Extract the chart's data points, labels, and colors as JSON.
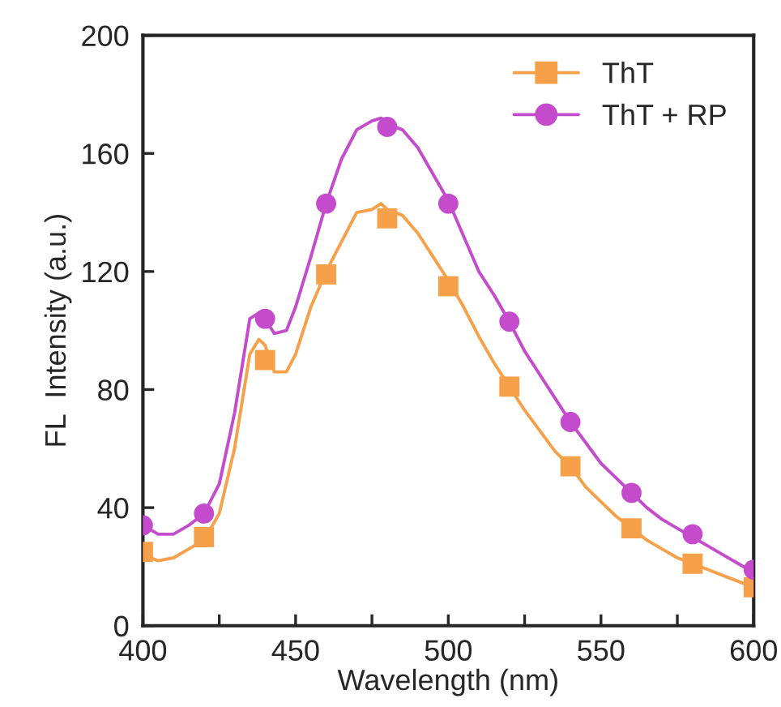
{
  "chart_data": {
    "type": "line",
    "xlabel": "Wavelength (nm)",
    "ylabel": "FL  Intensity (a.u.)",
    "xlim": [
      400,
      600
    ],
    "ylim": [
      0,
      200
    ],
    "xticks": [
      400,
      {
        "value": 425,
        "label": null
      },
      450,
      {
        "value": 475,
        "label": null
      },
      500,
      {
        "value": 525,
        "label": null
      },
      550,
      {
        "value": 575,
        "label": null
      },
      600
    ],
    "yticks": [
      0,
      40,
      80,
      120,
      160,
      200
    ],
    "grid": false,
    "legend": "top right",
    "line_style": "solid",
    "series": [
      {
        "marker": "none",
        "color": "#f7a04a",
        "x": [
          400,
          405,
          410,
          415,
          420,
          425,
          430,
          435,
          438,
          440,
          443,
          447,
          450,
          455,
          460,
          465,
          470,
          475,
          478,
          480,
          485,
          490,
          495,
          500,
          505,
          510,
          515,
          520,
          525,
          530,
          535,
          540,
          545,
          550,
          555,
          560,
          565,
          570,
          575,
          580,
          585,
          590,
          595,
          600
        ],
        "values": [
          24,
          22,
          23,
          26,
          29,
          38,
          60,
          92,
          97,
          95,
          86,
          86,
          92,
          108,
          120,
          130,
          140,
          141,
          143,
          141,
          139,
          133,
          125,
          117,
          108,
          98,
          89,
          81,
          73,
          66,
          59,
          54,
          47,
          42,
          37,
          33,
          29,
          26,
          23,
          21,
          19,
          17,
          15,
          13
        ]
      },
      {
        "marker": "none",
        "color": "#c44ccc",
        "x": [
          400,
          405,
          410,
          415,
          420,
          425,
          430,
          435,
          438,
          440,
          443,
          447,
          450,
          455,
          460,
          465,
          470,
          475,
          478,
          480,
          485,
          490,
          495,
          500,
          505,
          510,
          515,
          520,
          525,
          530,
          535,
          540,
          545,
          550,
          555,
          560,
          565,
          570,
          575,
          580,
          585,
          590,
          595,
          600
        ],
        "values": [
          34,
          31,
          31,
          34,
          38,
          48,
          72,
          104,
          106,
          104,
          99,
          100,
          108,
          125,
          143,
          158,
          168,
          171,
          172,
          170,
          168,
          162,
          153,
          144,
          132,
          120,
          112,
          103,
          93,
          85,
          77,
          69,
          62,
          55,
          50,
          45,
          40,
          36,
          33,
          30,
          27,
          24,
          21,
          18
        ]
      },
      {
        "type": "scatter",
        "name": "ThT",
        "marker": "square",
        "color": "#f7a04a",
        "x": [
          400,
          420,
          440,
          460,
          480,
          500,
          520,
          540,
          560,
          580,
          600
        ],
        "values": [
          25,
          30,
          90,
          119,
          138,
          115,
          81,
          54,
          33,
          21,
          13
        ]
      },
      {
        "type": "scatter",
        "name": "ThT + RP",
        "marker": "circle",
        "color": "#c44ccc",
        "x": [
          400,
          420,
          440,
          460,
          480,
          500,
          520,
          540,
          560,
          580,
          600
        ],
        "values": [
          34,
          38,
          104,
          143,
          169,
          143,
          103,
          69,
          45,
          31,
          19
        ]
      }
    ]
  }
}
